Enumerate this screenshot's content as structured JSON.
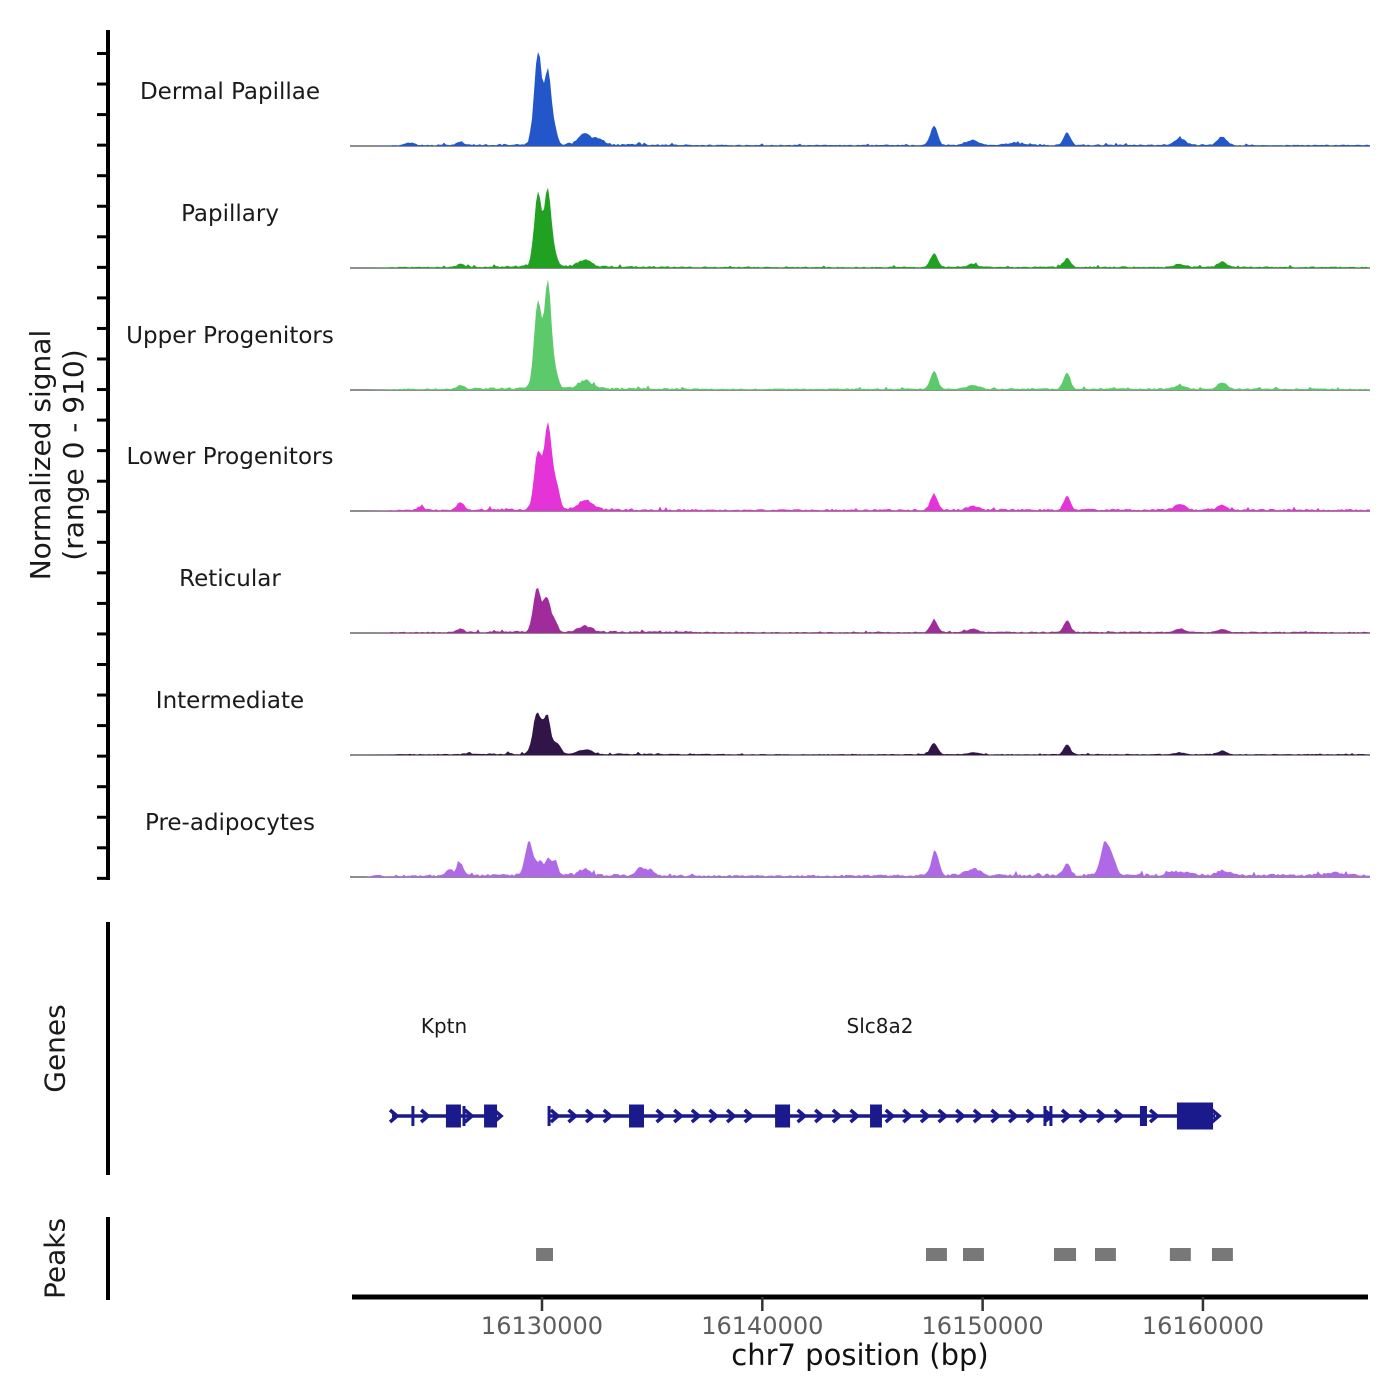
{
  "figure": {
    "y_axis_label_line1": "Normalized signal",
    "y_axis_label_line2": "(range 0 - 910)",
    "genes_panel_label": "Genes",
    "peaks_panel_label": "Peaks",
    "x_axis_label": "chr7 position (bp)"
  },
  "colors": {
    "gene": "#1a1a8c",
    "peak_box": "#787878",
    "axis": "#000000",
    "baseline": "#4a4a4a",
    "tick_label": "#5d5d5d"
  },
  "chart_data": {
    "type": "area",
    "title": "",
    "xlabel": "chr7 position (bp)",
    "ylabel": "Normalized signal (range 0 - 910)",
    "chromosome": "chr7",
    "xlim": [
      16121290,
      16167580
    ],
    "ylim_per_track": [
      0,
      910
    ],
    "x_ticks": [
      16130000,
      16140000,
      16150000,
      16160000
    ],
    "x_tick_labels": [
      "16130000",
      "16140000",
      "16150000",
      "16160000"
    ],
    "legend_position": "left-track-labels",
    "grid": false,
    "series": [
      {
        "name": "Dermal Papillae",
        "color": "#2356C8",
        "noise": 9,
        "nr": 0.5,
        "tail": 0.3,
        "peaks": [
          [
            16129818,
            170,
            740
          ],
          [
            16130272,
            150,
            585
          ],
          [
            16130590,
            120,
            110
          ],
          [
            16131950,
            300,
            85
          ],
          [
            16132630,
            200,
            45
          ],
          [
            16126300,
            150,
            30
          ],
          [
            16124000,
            200,
            20
          ],
          [
            16147790,
            160,
            160
          ],
          [
            16149560,
            250,
            40
          ],
          [
            16153830,
            150,
            105
          ],
          [
            16158960,
            250,
            55
          ],
          [
            16160870,
            200,
            70
          ],
          [
            16151500,
            400,
            15
          ]
        ]
      },
      {
        "name": "Papillary",
        "color": "#21A121",
        "noise": 9,
        "nr": 0.5,
        "tail": 0.3,
        "peaks": [
          [
            16129818,
            170,
            590
          ],
          [
            16130272,
            150,
            610
          ],
          [
            16130590,
            120,
            85
          ],
          [
            16131950,
            300,
            55
          ],
          [
            16126300,
            150,
            25
          ],
          [
            16147790,
            160,
            110
          ],
          [
            16149560,
            250,
            25
          ],
          [
            16153830,
            150,
            70
          ],
          [
            16158960,
            250,
            25
          ],
          [
            16160870,
            200,
            45
          ]
        ]
      },
      {
        "name": "Upper Progenitors",
        "color": "#5CC96A",
        "noise": 10,
        "nr": 0.6,
        "tail": 0.3,
        "peaks": [
          [
            16129818,
            170,
            710
          ],
          [
            16130272,
            150,
            855
          ],
          [
            16130620,
            130,
            120
          ],
          [
            16131950,
            300,
            65
          ],
          [
            16126300,
            150,
            30
          ],
          [
            16147790,
            160,
            145
          ],
          [
            16149560,
            250,
            30
          ],
          [
            16153830,
            150,
            130
          ],
          [
            16158960,
            250,
            30
          ],
          [
            16160870,
            200,
            55
          ]
        ]
      },
      {
        "name": "Lower Progenitors",
        "color": "#E433D6",
        "noise": 11,
        "nr": 0.7,
        "tail": 0.5,
        "peaks": [
          [
            16129818,
            170,
            460
          ],
          [
            16130272,
            160,
            680
          ],
          [
            16130640,
            150,
            200
          ],
          [
            16131950,
            300,
            75
          ],
          [
            16126300,
            150,
            60
          ],
          [
            16124500,
            150,
            30
          ],
          [
            16147790,
            160,
            130
          ],
          [
            16149560,
            250,
            30
          ],
          [
            16153830,
            150,
            110
          ],
          [
            16158960,
            250,
            45
          ],
          [
            16160870,
            200,
            40
          ]
        ]
      },
      {
        "name": "Reticular",
        "color": "#A02C9C",
        "noise": 8,
        "nr": 0.5,
        "tail": 0.3,
        "peaks": [
          [
            16129773,
            170,
            355
          ],
          [
            16130227,
            160,
            275
          ],
          [
            16130590,
            130,
            75
          ],
          [
            16131950,
            300,
            45
          ],
          [
            16126300,
            150,
            30
          ],
          [
            16147790,
            160,
            95
          ],
          [
            16149560,
            250,
            25
          ],
          [
            16153830,
            150,
            95
          ],
          [
            16158960,
            250,
            30
          ],
          [
            16160870,
            200,
            25
          ]
        ]
      },
      {
        "name": "Intermediate",
        "color": "#321548",
        "noise": 7,
        "nr": 0.3,
        "tail": 0.3,
        "peaks": [
          [
            16129773,
            180,
            330
          ],
          [
            16130227,
            170,
            300
          ],
          [
            16130700,
            150,
            85
          ],
          [
            16131950,
            300,
            35
          ],
          [
            16147790,
            160,
            95
          ],
          [
            16149560,
            250,
            15
          ],
          [
            16153830,
            150,
            80
          ],
          [
            16160870,
            200,
            30
          ],
          [
            16158960,
            250,
            15
          ]
        ]
      },
      {
        "name": "Pre-adipocytes",
        "color": "#B069E6",
        "noise": 12,
        "nr": 1.2,
        "tail": 0.9,
        "peaks": [
          [
            16122500,
            200,
            15
          ],
          [
            16125800,
            140,
            55
          ],
          [
            16126280,
            140,
            110
          ],
          [
            16129410,
            180,
            270
          ],
          [
            16129910,
            130,
            105
          ],
          [
            16130270,
            130,
            125
          ],
          [
            16130590,
            130,
            115
          ],
          [
            16131950,
            250,
            50
          ],
          [
            16134450,
            180,
            65
          ],
          [
            16134900,
            160,
            45
          ],
          [
            16147840,
            160,
            200
          ],
          [
            16149560,
            300,
            55
          ],
          [
            16153830,
            150,
            95
          ],
          [
            16155560,
            200,
            270
          ],
          [
            16155920,
            140,
            110
          ],
          [
            16158900,
            400,
            30
          ],
          [
            16160900,
            250,
            40
          ],
          [
            16166000,
            500,
            20
          ]
        ]
      }
    ],
    "genes": [
      {
        "name": "Kptn",
        "start": 16123190,
        "end": 16127960,
        "strand": "+",
        "exons": [
          [
            16125640,
            16126320
          ],
          [
            16127370,
            16127960
          ]
        ],
        "bars": [
          16124140,
          16126460
        ],
        "arrows": [
          16123420,
          16124830,
          16126820
        ]
      },
      {
        "name": "Slc8a2",
        "start": 16130320,
        "end": 16160550,
        "strand": "+",
        "exons": [
          [
            16133950,
            16134630
          ],
          [
            16140580,
            16141260
          ],
          [
            16144890,
            16145430
          ],
          [
            16157140,
            16157460
          ],
          [
            16158820,
            16160460
          ]
        ],
        "bars": [
          16130320,
          16152830,
          16153100
        ],
        "arrow_step": 800
      }
    ],
    "peak_regions": [
      [
        16129730,
        16130500
      ],
      [
        16147430,
        16148380
      ],
      [
        16149110,
        16150060
      ],
      [
        16153240,
        16154240
      ],
      [
        16155100,
        16156050
      ],
      [
        16158500,
        16159450
      ],
      [
        16160410,
        16161360
      ]
    ]
  }
}
